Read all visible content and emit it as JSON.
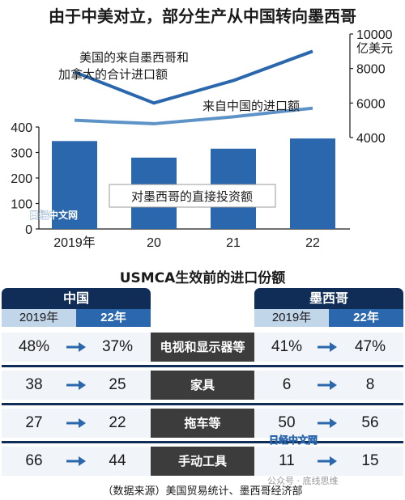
{
  "title": "由于中美对立，部分生产从中国转向墨西哥",
  "chart_data": {
    "type": "bar+line",
    "categories": [
      "2019年",
      "20",
      "21",
      "22"
    ],
    "bar_series": {
      "name": "对墨西哥的直接投资额",
      "values": [
        345,
        280,
        315,
        355
      ],
      "axis": "left",
      "ylim": [
        0,
        400
      ],
      "ticks": [
        0,
        100,
        200,
        300,
        400
      ]
    },
    "line_series": [
      {
        "name": "美国的来自墨西哥和加拿大的合计进口额",
        "values": [
          7800,
          6000,
          7300,
          9000
        ],
        "axis": "right"
      },
      {
        "name": "来自中国的进口额",
        "values": [
          5000,
          4800,
          5200,
          5700
        ],
        "axis": "right"
      }
    ],
    "right_axis": {
      "unit": "亿美元",
      "ylim": [
        4000,
        10000
      ],
      "ticks": [
        4000,
        6000,
        8000,
        10000
      ]
    },
    "colors": {
      "bar": "#2b67ad",
      "line_total": "#2b67ad",
      "line_china": "#5e93c8"
    }
  },
  "annotations": {
    "line_total_label_1": "美国的来自墨西哥和",
    "line_total_label_2": "加拿大的合计进口额",
    "line_china_label": "来自中国的进口额",
    "bar_label": "对墨西哥的直接投资额",
    "watermark": "日经中文网"
  },
  "table": {
    "title": "USMCA生效前的进口份额",
    "china": {
      "name": "中国",
      "years": [
        "2019年",
        "22年"
      ]
    },
    "mexico": {
      "name": "墨西哥",
      "years": [
        "2019年",
        "22年"
      ]
    },
    "rows": [
      {
        "category": "电视和显示器等",
        "china": [
          "48%",
          "37%"
        ],
        "mexico": [
          "41%",
          "47%"
        ]
      },
      {
        "category": "家具",
        "china": [
          "38",
          "25"
        ],
        "mexico": [
          "6",
          "8"
        ]
      },
      {
        "category": "拖车等",
        "china": [
          "27",
          "22"
        ],
        "mexico": [
          "50",
          "56"
        ]
      },
      {
        "category": "手动工具",
        "china": [
          "66",
          "44"
        ],
        "mexico": [
          "11",
          "15"
        ]
      }
    ]
  },
  "source": "（数据来源）美国贸易统计、墨西哥经济部",
  "brand": "公众号 · 底线思维",
  "watermark2": "日经中文网"
}
